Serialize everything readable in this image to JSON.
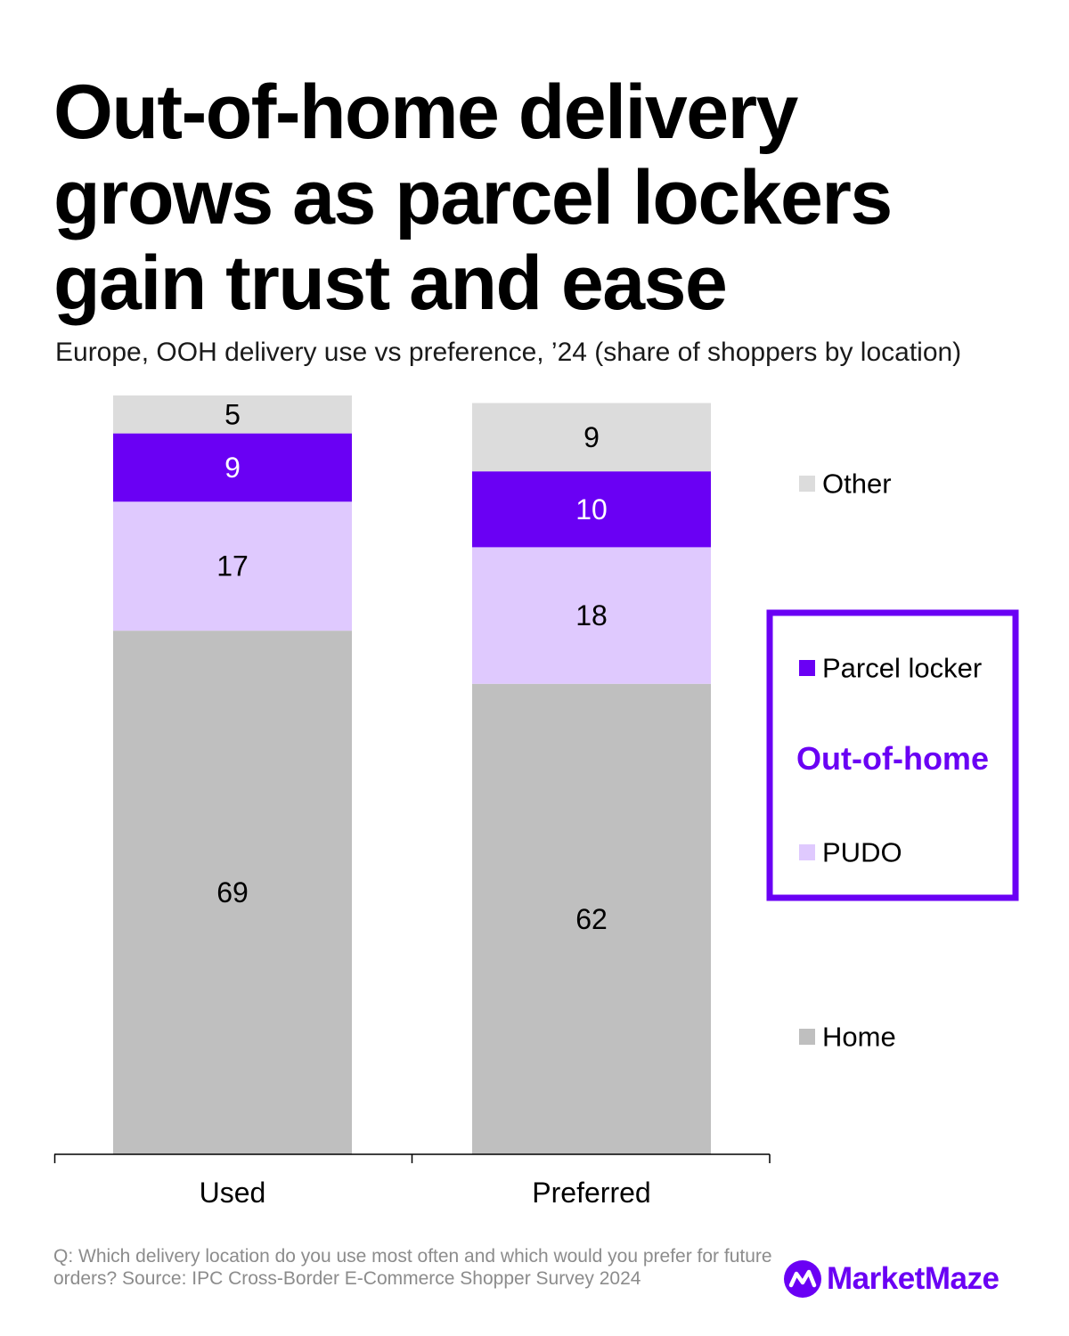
{
  "title": "Out-of-home delivery grows as parcel lockers gain trust and ease",
  "subtitle": "Europe, OOH delivery use vs preference, ’24 (share of shoppers by location)",
  "chart_data": {
    "type": "bar",
    "stacked": true,
    "categories": [
      "Used",
      "Preferred"
    ],
    "series": [
      {
        "name": "Home",
        "values": [
          69,
          62
        ],
        "color": "#bfbfbf",
        "label_color": "#000000"
      },
      {
        "name": "PUDO",
        "values": [
          17,
          18
        ],
        "color": "#dfc9fe",
        "label_color": "#000000"
      },
      {
        "name": "Parcel locker",
        "values": [
          9,
          10
        ],
        "color": "#6a00f4",
        "label_color": "#ffffff"
      },
      {
        "name": "Other",
        "values": [
          5,
          9
        ],
        "color": "#dcdcdc",
        "label_color": "#000000"
      }
    ],
    "ylim": [
      0,
      100
    ],
    "xlabel": "",
    "ylabel": "",
    "grid": false,
    "legend_position": "right",
    "legend_group": {
      "label": "Out-of-home",
      "members": [
        "Parcel locker",
        "PUDO"
      ],
      "color": "#6a00f4"
    }
  },
  "footnote": "Q: Which delivery location do you use most often and which would you prefer for future orders? Source: IPC Cross-Border E-Commerce Shopper Survey 2024",
  "brand": {
    "name": "MarketMaze",
    "color": "#6a00f4",
    "icon": "marketmaze-logo-icon"
  }
}
